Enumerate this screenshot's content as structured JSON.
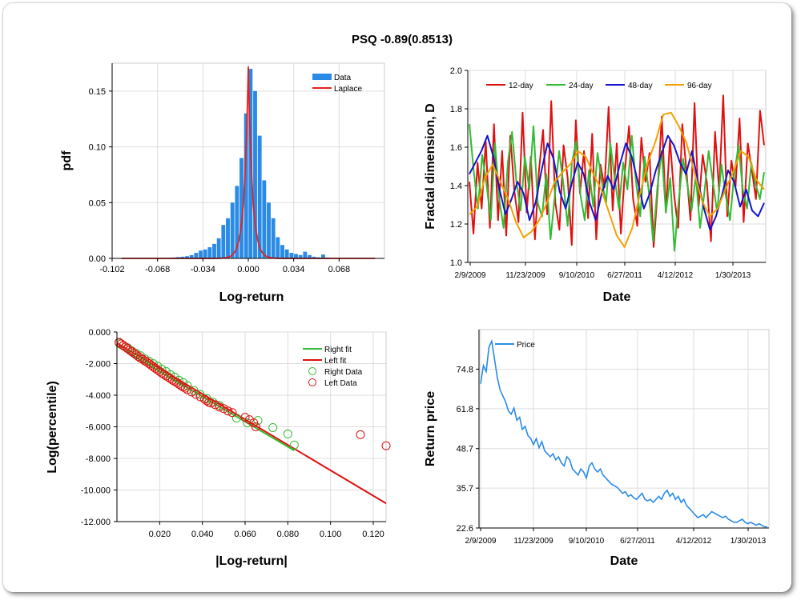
{
  "page": {
    "title": "PSQ -0.89(0.8513)"
  },
  "chart_data": [
    {
      "type": "bar",
      "xlabel": "Log-return",
      "ylabel": "pdf",
      "xlim": [
        -0.102,
        0.102
      ],
      "ylim": [
        0,
        0.175
      ],
      "xticks": [
        "-0.102",
        "-0.068",
        "-0.034",
        "0.000",
        "0.034",
        "0.068"
      ],
      "xtick_values": [
        -0.102,
        -0.068,
        -0.034,
        0.0,
        0.034,
        0.068
      ],
      "yticks": [
        "0.00",
        "0.05",
        "0.10",
        "0.15"
      ],
      "ytick_values": [
        0,
        0.05,
        0.1,
        0.15
      ],
      "legend": {
        "placement": "top-right",
        "entries": [
          "Data",
          "Laplace"
        ]
      },
      "bin_width": 0.0034,
      "bin_centers": [
        -0.0935,
        -0.0901,
        -0.0867,
        -0.0833,
        -0.0799,
        -0.0765,
        -0.0731,
        -0.0697,
        -0.0663,
        -0.0629,
        -0.0595,
        -0.0561,
        -0.0527,
        -0.0493,
        -0.0459,
        -0.0425,
        -0.0391,
        -0.0357,
        -0.0323,
        -0.0289,
        -0.0255,
        -0.0221,
        -0.0187,
        -0.0153,
        -0.0119,
        -0.0085,
        -0.0051,
        -0.0017,
        0.0017,
        0.0051,
        0.0085,
        0.0119,
        0.0153,
        0.0187,
        0.0221,
        0.0255,
        0.0289,
        0.0323,
        0.0357,
        0.0391,
        0.0425,
        0.0459,
        0.0493,
        0.0527,
        0.0561,
        0.0595,
        0.0629,
        0.0663
      ],
      "values": [
        0,
        0,
        0,
        0,
        0,
        0,
        0,
        0,
        0,
        0,
        0.0005,
        0.0008,
        0.0012,
        0.0015,
        0.002,
        0.003,
        0.005,
        0.007,
        0.008,
        0.01,
        0.013,
        0.018,
        0.03,
        0.036,
        0.05,
        0.065,
        0.09,
        0.13,
        0.17,
        0.15,
        0.11,
        0.07,
        0.05,
        0.036,
        0.019,
        0.012,
        0.008,
        0.005,
        0.004,
        0.003,
        0.006,
        0.003,
        0.0015,
        0.001,
        0.0035,
        0.0008,
        0,
        0
      ],
      "laplace": {
        "name": "Laplace",
        "mu": 0.0,
        "b": 0.003,
        "peak": 0.172,
        "color": "#e82020"
      },
      "bar_color": "#2a8be6"
    },
    {
      "type": "line",
      "xlabel": "Date",
      "ylabel": "Fractal dimension, D",
      "ylim": [
        1.0,
        2.0
      ],
      "yticks": [
        "1.0",
        "1.2",
        "1.4",
        "1.6",
        "1.8",
        "2.0"
      ],
      "ytick_values": [
        1.0,
        1.2,
        1.4,
        1.6,
        1.8,
        2.0
      ],
      "xticks": [
        "2/9/2009",
        "11/23/2009",
        "9/10/2010",
        "6/27/2011",
        "4/12/2012",
        "1/30/2013"
      ],
      "x_range_label": "2/9/2009 – 1/30/2013",
      "legend": {
        "placement": "top-left"
      },
      "series": [
        {
          "name": "12-day",
          "color": "#e01010",
          "values": [
            1.42,
            1.15,
            1.52,
            1.28,
            1.63,
            1.18,
            1.72,
            1.22,
            1.58,
            1.14,
            1.66,
            1.37,
            1.21,
            1.78,
            1.26,
            1.55,
            1.12,
            1.48,
            1.69,
            1.25,
            1.84,
            1.31,
            1.17,
            1.61,
            1.44,
            1.09,
            1.74,
            1.36,
            1.58,
            1.23,
            1.67,
            1.12,
            1.51,
            1.39,
            1.81,
            1.27,
            1.62,
            1.15,
            1.48,
            1.71,
            1.33,
            1.19,
            1.65,
            1.42,
            1.57,
            1.08,
            1.38,
            1.76,
            1.26,
            1.64,
            1.35,
            1.18,
            1.72,
            1.48,
            1.22,
            1.83,
            1.29,
            1.56,
            1.42,
            1.11,
            1.68,
            1.37,
            1.87,
            1.24,
            1.53,
            1.39,
            1.75,
            1.21,
            1.62,
            1.48,
            1.33,
            1.79,
            1.61
          ]
        },
        {
          "name": "24-day",
          "color": "#33bb33",
          "values": [
            1.72,
            1.48,
            1.28,
            1.56,
            1.41,
            1.22,
            1.62,
            1.33,
            1.18,
            1.52,
            1.68,
            1.42,
            1.27,
            1.55,
            1.38,
            1.71,
            1.31,
            1.24,
            1.46,
            1.12,
            1.35,
            1.58,
            1.41,
            1.19,
            1.52,
            1.63,
            1.35,
            1.22,
            1.48,
            1.29,
            1.57,
            1.42,
            1.31,
            1.62,
            1.44,
            1.28,
            1.52,
            1.38,
            1.66,
            1.42,
            1.24,
            1.55,
            1.37,
            1.11,
            1.39,
            1.58,
            1.26,
            1.44,
            1.06,
            1.32,
            1.54,
            1.41,
            1.27,
            1.45,
            1.18,
            1.36,
            1.58,
            1.42,
            1.26,
            1.51,
            1.35,
            1.22,
            1.46,
            1.61,
            1.38,
            1.28,
            1.52,
            1.41,
            1.33,
            1.47
          ]
        },
        {
          "name": "48-day",
          "color": "#1414cc",
          "values": [
            1.46,
            1.52,
            1.58,
            1.66,
            1.55,
            1.38,
            1.25,
            1.33,
            1.42,
            1.36,
            1.22,
            1.31,
            1.48,
            1.62,
            1.54,
            1.37,
            1.28,
            1.41,
            1.52,
            1.46,
            1.31,
            1.22,
            1.36,
            1.45,
            1.38,
            1.51,
            1.62,
            1.55,
            1.42,
            1.28,
            1.36,
            1.48,
            1.57,
            1.66,
            1.61,
            1.52,
            1.46,
            1.58,
            1.42,
            1.28,
            1.17,
            1.24,
            1.35,
            1.48,
            1.42,
            1.29,
            1.38,
            1.27,
            1.24,
            1.31
          ]
        },
        {
          "name": "96-day",
          "color": "#f5a000",
          "values": [
            1.25,
            1.29,
            1.44,
            1.51,
            1.42,
            1.33,
            1.21,
            1.13,
            1.16,
            1.22,
            1.31,
            1.42,
            1.47,
            1.51,
            1.58,
            1.55,
            1.46,
            1.38,
            1.26,
            1.14,
            1.08,
            1.18,
            1.36,
            1.52,
            1.63,
            1.77,
            1.78,
            1.71,
            1.62,
            1.47,
            1.32,
            1.24,
            1.28,
            1.38,
            1.47,
            1.58,
            1.55,
            1.43,
            1.38
          ]
        }
      ]
    },
    {
      "type": "scatter",
      "xlabel": "|Log-return|",
      "ylabel": "Log(percentile)",
      "xlim": [
        0,
        0.126
      ],
      "ylim": [
        -12.0,
        0.0
      ],
      "xticks": [
        "0.020",
        "0.040",
        "0.060",
        "0.080",
        "0.100",
        "0.120"
      ],
      "xtick_values": [
        0.02,
        0.04,
        0.06,
        0.08,
        0.1,
        0.12
      ],
      "yticks": [
        "0.000",
        "-2.000",
        "-4.000",
        "-6.000",
        "-8.000",
        "-10.000",
        "-12.000"
      ],
      "ytick_values": [
        0,
        -2,
        -4,
        -6,
        -8,
        -10,
        -12
      ],
      "legend": {
        "placement": "top-right",
        "entries": [
          "Right fit",
          "Left fit",
          "Right Data",
          "Left Data"
        ]
      },
      "series": [
        {
          "name": "Right fit",
          "color": "#33bb33",
          "kind": "line",
          "x": [
            0.0,
            0.083
          ],
          "y": [
            -0.9,
            -7.5
          ]
        },
        {
          "name": "Left fit",
          "color": "#e01010",
          "kind": "line",
          "x": [
            0.0,
            0.126
          ],
          "y": [
            -0.7,
            -10.85
          ]
        },
        {
          "name": "Right Data",
          "color": "#33bb33",
          "kind": "points",
          "x": [
            0.001,
            0.003,
            0.005,
            0.007,
            0.009,
            0.011,
            0.013,
            0.015,
            0.017,
            0.019,
            0.021,
            0.023,
            0.025,
            0.027,
            0.029,
            0.031,
            0.033,
            0.036,
            0.039,
            0.042,
            0.045,
            0.048,
            0.052,
            0.056,
            0.061,
            0.066,
            0.073,
            0.08,
            0.083
          ],
          "y": [
            -0.7,
            -0.85,
            -1.0,
            -1.2,
            -1.35,
            -1.5,
            -1.7,
            -1.85,
            -2.0,
            -2.15,
            -2.35,
            -2.5,
            -2.7,
            -2.85,
            -3.05,
            -3.2,
            -3.4,
            -3.7,
            -3.95,
            -4.2,
            -4.45,
            -4.65,
            -5.0,
            -5.45,
            -5.75,
            -5.6,
            -6.05,
            -6.45,
            -7.15
          ]
        },
        {
          "name": "Left Data",
          "color": "#e01010",
          "kind": "points",
          "x": [
            0.001,
            0.002,
            0.003,
            0.004,
            0.005,
            0.006,
            0.007,
            0.008,
            0.009,
            0.01,
            0.011,
            0.012,
            0.013,
            0.014,
            0.015,
            0.016,
            0.017,
            0.018,
            0.019,
            0.02,
            0.021,
            0.022,
            0.023,
            0.024,
            0.025,
            0.026,
            0.027,
            0.028,
            0.029,
            0.03,
            0.031,
            0.032,
            0.033,
            0.035,
            0.037,
            0.039,
            0.041,
            0.042,
            0.043,
            0.044,
            0.046,
            0.048,
            0.05,
            0.052,
            0.054,
            0.06,
            0.062,
            0.064,
            0.065,
            0.114,
            0.126
          ],
          "y": [
            -0.65,
            -0.75,
            -0.85,
            -0.95,
            -1.05,
            -1.15,
            -1.25,
            -1.35,
            -1.45,
            -1.55,
            -1.65,
            -1.72,
            -1.82,
            -1.9,
            -2.0,
            -2.1,
            -2.2,
            -2.3,
            -2.4,
            -2.5,
            -2.6,
            -2.68,
            -2.78,
            -2.86,
            -2.95,
            -3.05,
            -3.12,
            -3.2,
            -3.3,
            -3.4,
            -3.48,
            -3.55,
            -3.65,
            -3.8,
            -3.95,
            -4.1,
            -4.25,
            -4.35,
            -4.45,
            -4.5,
            -4.6,
            -4.75,
            -4.85,
            -5.0,
            -5.1,
            -5.4,
            -5.55,
            -5.75,
            -6.0,
            -6.5,
            -7.2
          ]
        }
      ]
    },
    {
      "type": "line",
      "xlabel": "Date",
      "ylabel": "Return price",
      "ylim": [
        22.6,
        87.8
      ],
      "yticks": [
        "22.6",
        "35.7",
        "48.7",
        "61.8",
        "74.8"
      ],
      "ytick_values": [
        22.6,
        35.7,
        48.7,
        61.8,
        74.8
      ],
      "xticks": [
        "2/9/2009",
        "11/23/2009",
        "9/10/2010",
        "6/27/2011",
        "4/12/2012",
        "1/30/2013"
      ],
      "legend": {
        "placement": "top-left"
      },
      "series": [
        {
          "name": "Price",
          "color": "#2a8be6",
          "values": [
            70,
            76,
            74,
            82,
            84,
            78,
            72,
            68,
            66,
            64,
            61,
            60,
            62,
            58,
            59,
            55,
            56,
            53,
            52,
            50,
            52,
            49,
            51,
            48,
            47,
            46,
            47,
            45,
            46,
            44,
            43,
            46,
            45,
            42,
            41,
            40,
            42,
            41,
            39,
            43,
            44,
            42,
            41,
            42,
            40,
            39,
            38,
            37,
            36.5,
            36,
            35,
            34,
            34.5,
            33,
            33.5,
            32.5,
            32,
            33,
            34,
            32,
            31.5,
            32,
            31,
            32,
            33,
            32,
            34,
            35,
            33,
            34,
            32,
            33,
            31,
            32,
            30,
            29,
            28,
            27,
            26,
            26.5,
            27,
            26,
            27,
            28,
            27.5,
            27,
            26.5,
            26,
            26.5,
            25.5,
            25,
            24.5,
            24.5,
            25,
            25.5,
            24.5,
            24,
            24.5,
            24,
            23.5,
            24,
            23.5,
            23,
            23
          ]
        }
      ]
    }
  ]
}
